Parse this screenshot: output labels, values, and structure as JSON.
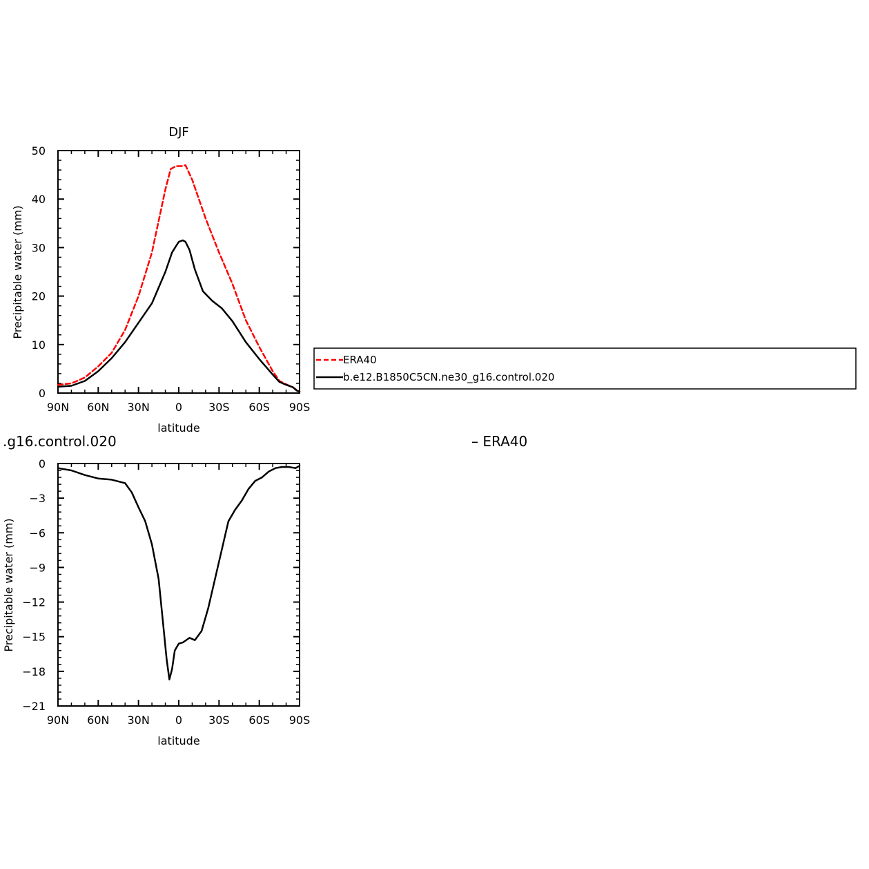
{
  "chart_data": [
    {
      "type": "line",
      "title": "DJF",
      "xlabel": "latitude",
      "ylabel": "Precipitable water (mm)",
      "xlim": [
        90,
        -90
      ],
      "ylim": [
        0,
        50
      ],
      "x_tick_values": [
        90,
        60,
        30,
        0,
        -30,
        -60,
        -90
      ],
      "x_tick_labels": [
        "90N",
        "60N",
        "30N",
        "0",
        "30S",
        "60S",
        "90S"
      ],
      "y_tick_values": [
        0,
        10,
        20,
        30,
        40,
        50
      ],
      "y_tick_labels": [
        "0",
        "10",
        "20",
        "30",
        "40",
        "50"
      ],
      "legend_position": "right",
      "series": [
        {
          "name": "ERA40",
          "color": "#ff0000",
          "dash": "dashed",
          "x": [
            90,
            80,
            70,
            60,
            50,
            40,
            30,
            20,
            10,
            6,
            2,
            -2,
            -5,
            -10,
            -20,
            -30,
            -40,
            -50,
            -60,
            -70,
            -75,
            -80,
            -85,
            -88,
            -90
          ],
          "y": [
            1.7,
            2.0,
            3.2,
            5.5,
            8.3,
            13.0,
            20.0,
            29.0,
            42.0,
            46.2,
            46.8,
            46.8,
            47.0,
            44.0,
            36.0,
            29.0,
            22.5,
            15.0,
            9.5,
            4.5,
            2.5,
            1.8,
            1.2,
            0.6,
            0.3
          ]
        },
        {
          "name": "b.e12.B1850C5CN.ne30_g16.control.020",
          "color": "#000000",
          "dash": "solid",
          "x": [
            90,
            80,
            70,
            60,
            50,
            40,
            30,
            20,
            10,
            5,
            0,
            -3,
            -5,
            -8,
            -12,
            -18,
            -25,
            -32,
            -40,
            -50,
            -60,
            -70,
            -75,
            -80,
            -85,
            -88,
            -90
          ],
          "y": [
            1.3,
            1.5,
            2.5,
            4.5,
            7.2,
            10.5,
            14.5,
            18.5,
            25.0,
            29.0,
            31.2,
            31.5,
            31.2,
            29.5,
            25.5,
            21.0,
            19.0,
            17.5,
            14.8,
            10.5,
            7.0,
            3.8,
            2.3,
            1.7,
            1.2,
            0.5,
            0.3
          ]
        }
      ]
    },
    {
      "type": "line",
      "title_fragment_left": ".g16.control.020",
      "title_fragment_right": "– ERA40",
      "xlabel": "latitude",
      "ylabel": "Precipitable water (mm)",
      "xlim": [
        90,
        -90
      ],
      "ylim": [
        -21,
        0
      ],
      "x_tick_values": [
        90,
        60,
        30,
        0,
        -30,
        -60,
        -90
      ],
      "x_tick_labels": [
        "90N",
        "60N",
        "30N",
        "0",
        "30S",
        "60S",
        "90S"
      ],
      "y_tick_values": [
        0,
        -3,
        -6,
        -9,
        -12,
        -15,
        -18,
        -21
      ],
      "y_tick_labels": [
        "0",
        "−3",
        "−6",
        "−9",
        "−12",
        "−15",
        "−18",
        "−21"
      ],
      "series": [
        {
          "name": "",
          "color": "#000000",
          "dash": "solid",
          "x": [
            90,
            80,
            70,
            60,
            50,
            40,
            35,
            30,
            25,
            20,
            15,
            12,
            9,
            7,
            5,
            3,
            0,
            -3,
            -8,
            -12,
            -17,
            -22,
            -27,
            -32,
            -37,
            -42,
            -47,
            -52,
            -57,
            -62,
            -67,
            -72,
            -77,
            -82,
            -87,
            -90
          ],
          "y": [
            -0.4,
            -0.6,
            -1.0,
            -1.3,
            -1.4,
            -1.7,
            -2.5,
            -3.8,
            -5.0,
            -7.0,
            -10.0,
            -13.5,
            -17.0,
            -18.7,
            -17.8,
            -16.2,
            -15.6,
            -15.5,
            -15.1,
            -15.3,
            -14.5,
            -12.5,
            -10.0,
            -7.5,
            -5.0,
            -4.0,
            -3.2,
            -2.2,
            -1.5,
            -1.2,
            -0.7,
            -0.4,
            -0.3,
            -0.3,
            -0.4,
            -0.2
          ]
        }
      ]
    }
  ]
}
